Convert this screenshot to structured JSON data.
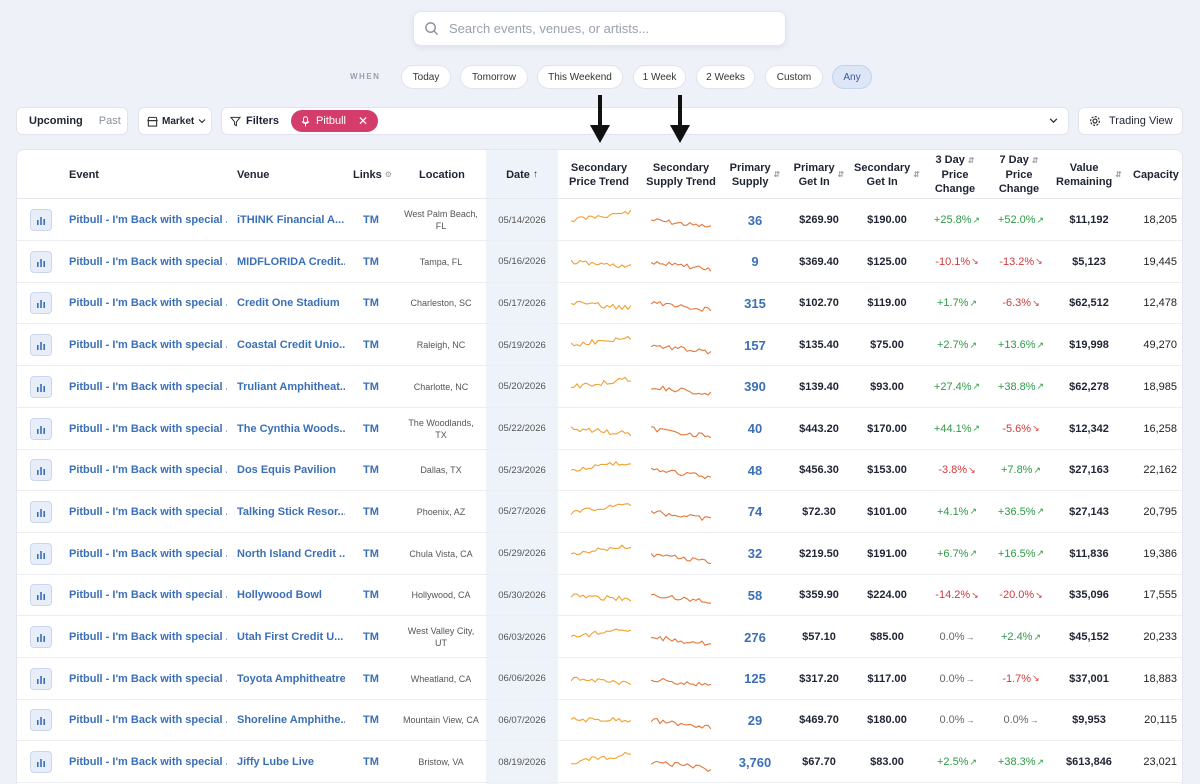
{
  "search": {
    "placeholder": "Search events, venues, or artists..."
  },
  "when": {
    "label": "WHEN",
    "options": [
      "Today",
      "Tomorrow",
      "This Weekend",
      "1 Week",
      "2 Weeks",
      "Custom",
      "Any"
    ],
    "selected": "Any"
  },
  "segment": {
    "upcoming": "Upcoming",
    "past": "Past"
  },
  "market": {
    "label": "Market"
  },
  "filters": {
    "label": "Filters",
    "chip": "Pitbull"
  },
  "trading": {
    "label": "Trading View"
  },
  "columns": {
    "event": "Event",
    "venue": "Venue",
    "links": "Links",
    "location": "Location",
    "date": "Date",
    "sec_price_trend": [
      "Secondary",
      "Price Trend"
    ],
    "sec_supply_trend": [
      "Secondary",
      "Supply Trend"
    ],
    "primary_supply": [
      "Primary",
      "Supply"
    ],
    "primary_get_in": [
      "Primary",
      "Get In"
    ],
    "secondary_get_in": [
      "Secondary",
      "Get In"
    ],
    "three_day": [
      "3 Day",
      "Price",
      "Change"
    ],
    "seven_day": [
      "7 Day",
      "Price",
      "Change"
    ],
    "value_remaining": [
      "Value",
      "Remaining"
    ],
    "capacity": "Capacity"
  },
  "colors": {
    "price_spark": "#f0a030",
    "supply_spark": "#e0783a",
    "positive": "#2e9a46",
    "negative": "#d03a3a"
  },
  "rows": [
    {
      "event": "Pitbull - I'm Back with special ...",
      "venue": "iTHINK Financial A...",
      "link": "TM",
      "location": [
        "West Palm Beach,",
        "FL"
      ],
      "date": "05/14/2026",
      "supply": "36",
      "pgi": "$269.90",
      "sgi": "$190.00",
      "d3": "+25.8%",
      "d3s": "pos",
      "d7": "+52.0%",
      "d7s": "pos",
      "value": "$11,192",
      "cap": "18,205"
    },
    {
      "event": "Pitbull - I'm Back with special ...",
      "venue": "MIDFLORIDA Credit...",
      "link": "TM",
      "location": [
        "Tampa, FL"
      ],
      "date": "05/16/2026",
      "supply": "9",
      "pgi": "$369.40",
      "sgi": "$125.00",
      "d3": "-10.1%",
      "d3s": "neg",
      "d7": "-13.2%",
      "d7s": "neg",
      "value": "$5,123",
      "cap": "19,445"
    },
    {
      "event": "Pitbull - I'm Back with special ...",
      "venue": "Credit One Stadium",
      "link": "TM",
      "location": [
        "Charleston, SC"
      ],
      "date": "05/17/2026",
      "supply": "315",
      "pgi": "$102.70",
      "sgi": "$119.00",
      "d3": "+1.7%",
      "d3s": "pos",
      "d7": "-6.3%",
      "d7s": "neg",
      "value": "$62,512",
      "cap": "12,478"
    },
    {
      "event": "Pitbull - I'm Back with special ...",
      "venue": "Coastal Credit Unio...",
      "link": "TM",
      "location": [
        "Raleigh, NC"
      ],
      "date": "05/19/2026",
      "supply": "157",
      "pgi": "$135.40",
      "sgi": "$75.00",
      "d3": "+2.7%",
      "d3s": "pos",
      "d7": "+13.6%",
      "d7s": "pos",
      "value": "$19,998",
      "cap": "49,270"
    },
    {
      "event": "Pitbull - I'm Back with special ...",
      "venue": "Truliant Amphitheat...",
      "link": "TM",
      "location": [
        "Charlotte, NC"
      ],
      "date": "05/20/2026",
      "supply": "390",
      "pgi": "$139.40",
      "sgi": "$93.00",
      "d3": "+27.4%",
      "d3s": "pos",
      "d7": "+38.8%",
      "d7s": "pos",
      "value": "$62,278",
      "cap": "18,985"
    },
    {
      "event": "Pitbull - I'm Back with special ...",
      "venue": "The Cynthia Woods...",
      "link": "TM",
      "location": [
        "The Woodlands,",
        "TX"
      ],
      "date": "05/22/2026",
      "supply": "40",
      "pgi": "$443.20",
      "sgi": "$170.00",
      "d3": "+44.1%",
      "d3s": "pos",
      "d7": "-5.6%",
      "d7s": "neg",
      "value": "$12,342",
      "cap": "16,258"
    },
    {
      "event": "Pitbull - I'm Back with special ...",
      "venue": "Dos Equis Pavilion",
      "link": "TM",
      "location": [
        "Dallas, TX"
      ],
      "date": "05/23/2026",
      "supply": "48",
      "pgi": "$456.30",
      "sgi": "$153.00",
      "d3": "-3.8%",
      "d3s": "neg",
      "d7": "+7.8%",
      "d7s": "pos",
      "value": "$27,163",
      "cap": "22,162"
    },
    {
      "event": "Pitbull - I'm Back with special ...",
      "venue": "Talking Stick Resor...",
      "link": "TM",
      "location": [
        "Phoenix, AZ"
      ],
      "date": "05/27/2026",
      "supply": "74",
      "pgi": "$72.30",
      "sgi": "$101.00",
      "d3": "+4.1%",
      "d3s": "pos",
      "d7": "+36.5%",
      "d7s": "pos",
      "value": "$27,143",
      "cap": "20,795"
    },
    {
      "event": "Pitbull - I'm Back with special ...",
      "venue": "North Island Credit ...",
      "link": "TM",
      "location": [
        "Chula Vista, CA"
      ],
      "date": "05/29/2026",
      "supply": "32",
      "pgi": "$219.50",
      "sgi": "$191.00",
      "d3": "+6.7%",
      "d3s": "pos",
      "d7": "+16.5%",
      "d7s": "pos",
      "value": "$11,836",
      "cap": "19,386"
    },
    {
      "event": "Pitbull - I'm Back with special ...",
      "venue": "Hollywood Bowl",
      "link": "TM",
      "location": [
        "Hollywood, CA"
      ],
      "date": "05/30/2026",
      "supply": "58",
      "pgi": "$359.90",
      "sgi": "$224.00",
      "d3": "-14.2%",
      "d3s": "neg",
      "d7": "-20.0%",
      "d7s": "neg",
      "value": "$35,096",
      "cap": "17,555"
    },
    {
      "event": "Pitbull - I'm Back with special ...",
      "venue": "Utah First Credit U...",
      "link": "TM",
      "location": [
        "West Valley City,",
        "UT"
      ],
      "date": "06/03/2026",
      "supply": "276",
      "pgi": "$57.10",
      "sgi": "$85.00",
      "d3": "0.0%",
      "d3s": "neu",
      "d7": "+2.4%",
      "d7s": "pos",
      "value": "$45,152",
      "cap": "20,233"
    },
    {
      "event": "Pitbull - I'm Back with special ...",
      "venue": "Toyota Amphitheatre",
      "link": "TM",
      "location": [
        "Wheatland, CA"
      ],
      "date": "06/06/2026",
      "supply": "125",
      "pgi": "$317.20",
      "sgi": "$117.00",
      "d3": "0.0%",
      "d3s": "neu",
      "d7": "-1.7%",
      "d7s": "neg",
      "value": "$37,001",
      "cap": "18,883"
    },
    {
      "event": "Pitbull - I'm Back with special ...",
      "venue": "Shoreline Amphithe...",
      "link": "TM",
      "location": [
        "Mountain View, CA"
      ],
      "date": "06/07/2026",
      "supply": "29",
      "pgi": "$469.70",
      "sgi": "$180.00",
      "d3": "0.0%",
      "d3s": "neu",
      "d7": "0.0%",
      "d7s": "neu",
      "value": "$9,953",
      "cap": "20,115"
    },
    {
      "event": "Pitbull - I'm Back with special ...",
      "venue": "Jiffy Lube Live",
      "link": "TM",
      "location": [
        "Bristow, VA"
      ],
      "date": "08/19/2026",
      "supply": "3,760",
      "pgi": "$67.70",
      "sgi": "$83.00",
      "d3": "+2.5%",
      "d3s": "pos",
      "d7": "+38.3%",
      "d7s": "pos",
      "value": "$613,846",
      "cap": "23,021"
    }
  ]
}
